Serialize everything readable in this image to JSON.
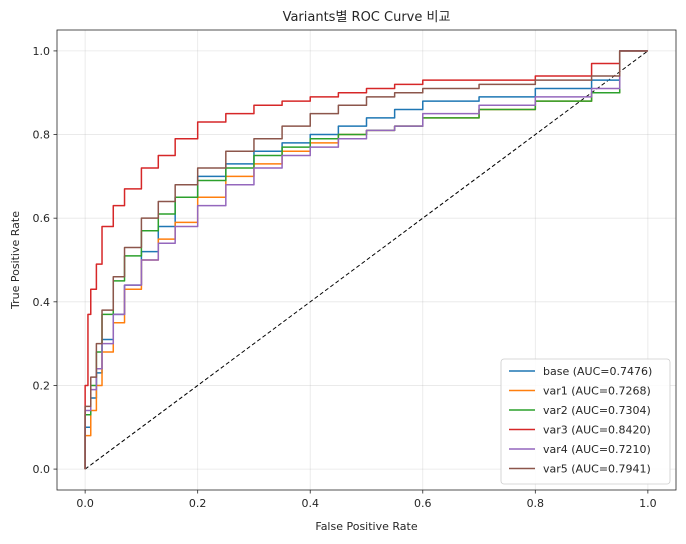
{
  "chart_data": {
    "type": "line",
    "title": "Variants별 ROC Curve 비교",
    "xlabel": "False Positive Rate",
    "ylabel": "True Positive Rate",
    "xlim": [
      -0.05,
      1.05
    ],
    "ylim": [
      -0.05,
      1.05
    ],
    "xticks": [
      0.0,
      0.2,
      0.4,
      0.6,
      0.8,
      1.0
    ],
    "yticks": [
      0.0,
      0.2,
      0.4,
      0.6,
      0.8,
      1.0
    ],
    "xtick_labels": [
      "0.0",
      "0.2",
      "0.4",
      "0.6",
      "0.8",
      "1.0"
    ],
    "ytick_labels": [
      "0.0",
      "0.2",
      "0.4",
      "0.6",
      "0.8",
      "1.0"
    ],
    "grid": true,
    "legend_position": "lower-right",
    "diagonal_reference": {
      "x": [
        0,
        1
      ],
      "y": [
        0,
        1
      ],
      "style": "dashed",
      "color": "#000000"
    },
    "series": [
      {
        "name": "base (AUC=0.7476)",
        "color": "#1f77b4",
        "x": [
          0,
          0.01,
          0.02,
          0.03,
          0.05,
          0.07,
          0.1,
          0.13,
          0.16,
          0.2,
          0.25,
          0.3,
          0.35,
          0.4,
          0.45,
          0.5,
          0.55,
          0.6,
          0.7,
          0.8,
          0.9,
          0.95,
          1.0
        ],
        "y": [
          0,
          0.1,
          0.17,
          0.23,
          0.31,
          0.37,
          0.44,
          0.52,
          0.58,
          0.65,
          0.7,
          0.73,
          0.76,
          0.78,
          0.8,
          0.82,
          0.84,
          0.86,
          0.88,
          0.89,
          0.91,
          0.93,
          1.0
        ]
      },
      {
        "name": "var1 (AUC=0.7268)",
        "color": "#ff7f0e",
        "x": [
          0,
          0.01,
          0.02,
          0.03,
          0.05,
          0.07,
          0.1,
          0.13,
          0.16,
          0.2,
          0.25,
          0.3,
          0.35,
          0.4,
          0.45,
          0.5,
          0.55,
          0.6,
          0.7,
          0.8,
          0.9,
          0.95,
          1.0
        ],
        "y": [
          0,
          0.08,
          0.14,
          0.2,
          0.28,
          0.35,
          0.43,
          0.5,
          0.55,
          0.59,
          0.65,
          0.7,
          0.73,
          0.76,
          0.78,
          0.8,
          0.81,
          0.82,
          0.84,
          0.86,
          0.88,
          0.9,
          1.0
        ]
      },
      {
        "name": "var2 (AUC=0.7304)",
        "color": "#2ca02c",
        "x": [
          0,
          0.01,
          0.02,
          0.03,
          0.05,
          0.07,
          0.1,
          0.13,
          0.16,
          0.2,
          0.25,
          0.3,
          0.35,
          0.4,
          0.45,
          0.5,
          0.55,
          0.6,
          0.7,
          0.8,
          0.9,
          0.95,
          1.0
        ],
        "y": [
          0,
          0.13,
          0.2,
          0.28,
          0.37,
          0.45,
          0.51,
          0.57,
          0.61,
          0.65,
          0.69,
          0.72,
          0.75,
          0.77,
          0.79,
          0.8,
          0.81,
          0.82,
          0.84,
          0.86,
          0.88,
          0.9,
          1.0
        ]
      },
      {
        "name": "var3 (AUC=0.8420)",
        "color": "#d62728",
        "x": [
          0,
          0.005,
          0.01,
          0.02,
          0.03,
          0.05,
          0.07,
          0.1,
          0.13,
          0.16,
          0.2,
          0.25,
          0.3,
          0.35,
          0.4,
          0.45,
          0.5,
          0.55,
          0.6,
          0.7,
          0.8,
          0.9,
          0.95,
          1.0
        ],
        "y": [
          0,
          0.2,
          0.37,
          0.43,
          0.49,
          0.58,
          0.63,
          0.67,
          0.72,
          0.75,
          0.79,
          0.83,
          0.85,
          0.87,
          0.88,
          0.89,
          0.9,
          0.91,
          0.92,
          0.93,
          0.93,
          0.94,
          0.97,
          1.0
        ]
      },
      {
        "name": "var4 (AUC=0.7210)",
        "color": "#9467bd",
        "x": [
          0,
          0.01,
          0.02,
          0.03,
          0.05,
          0.07,
          0.1,
          0.13,
          0.16,
          0.2,
          0.25,
          0.3,
          0.35,
          0.4,
          0.45,
          0.5,
          0.55,
          0.6,
          0.7,
          0.8,
          0.9,
          0.95,
          1.0
        ],
        "y": [
          0,
          0.14,
          0.19,
          0.24,
          0.3,
          0.37,
          0.44,
          0.5,
          0.54,
          0.58,
          0.63,
          0.68,
          0.72,
          0.75,
          0.77,
          0.79,
          0.81,
          0.82,
          0.85,
          0.87,
          0.89,
          0.91,
          1.0
        ]
      },
      {
        "name": "var5 (AUC=0.7941)",
        "color": "#8c564b",
        "x": [
          0,
          0.01,
          0.02,
          0.03,
          0.05,
          0.07,
          0.1,
          0.13,
          0.16,
          0.2,
          0.25,
          0.3,
          0.35,
          0.4,
          0.45,
          0.5,
          0.55,
          0.6,
          0.7,
          0.8,
          0.9,
          0.95,
          1.0
        ],
        "y": [
          0,
          0.15,
          0.22,
          0.3,
          0.38,
          0.46,
          0.53,
          0.6,
          0.64,
          0.68,
          0.72,
          0.76,
          0.79,
          0.82,
          0.85,
          0.87,
          0.89,
          0.9,
          0.91,
          0.92,
          0.93,
          0.94,
          1.0
        ]
      }
    ]
  }
}
